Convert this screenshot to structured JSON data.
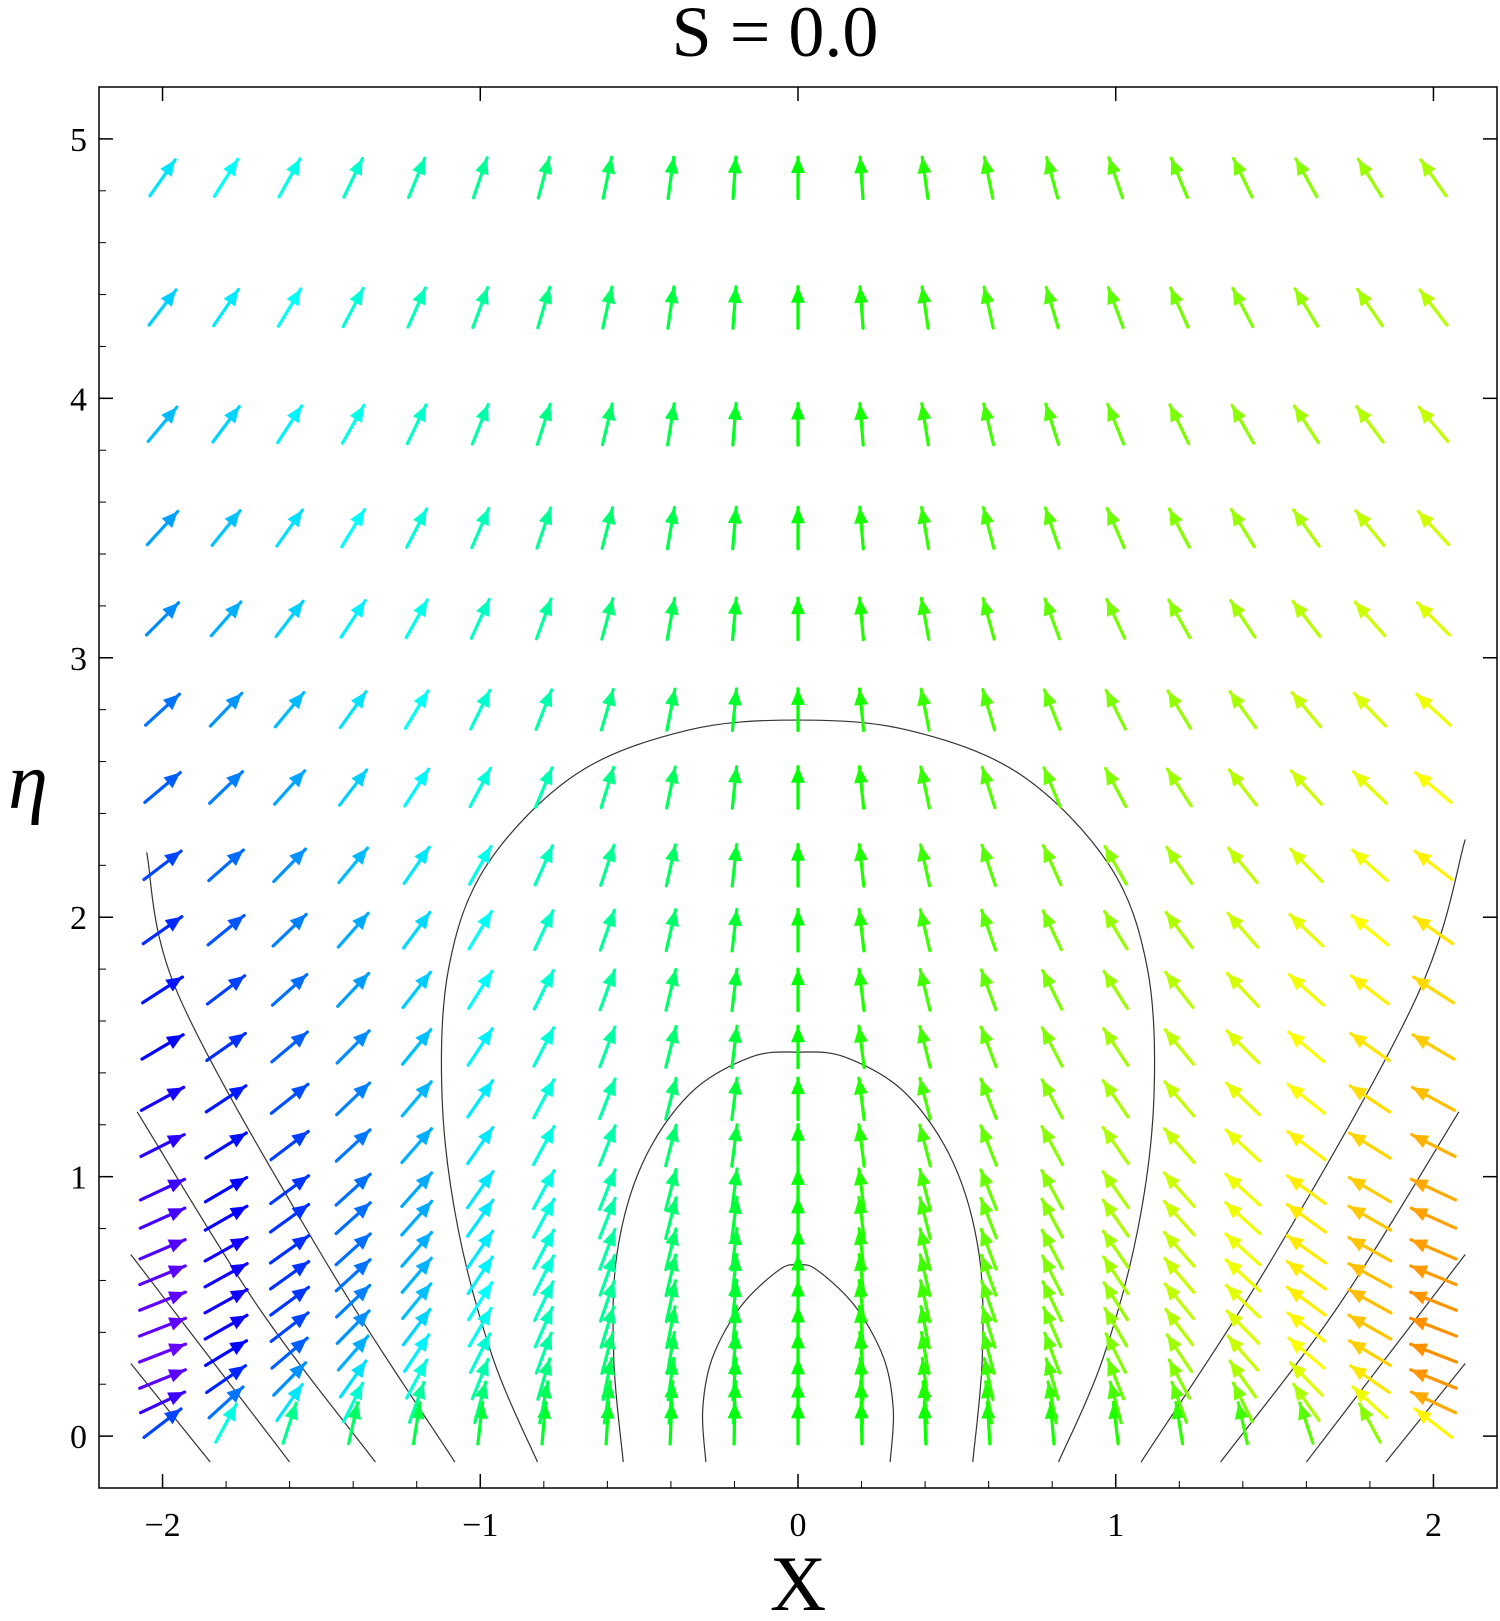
{
  "chart_data": {
    "type": "vector-field",
    "title": "S = 0.0",
    "xlabel": "X",
    "ylabel": "η",
    "xlim": [
      -2.2,
      2.2
    ],
    "ylim": [
      -0.2,
      5.2
    ],
    "xticks": [
      -2,
      -1,
      0,
      1,
      2
    ],
    "xtick_labels": [
      "−2",
      "−1",
      "0",
      "1",
      "2"
    ],
    "yticks": [
      0,
      1,
      2,
      3,
      4,
      5
    ],
    "ytick_labels": [
      "0",
      "1",
      "2",
      "3",
      "4",
      "5"
    ],
    "grid": false,
    "field": {
      "description": "velocity field arrows colored by direction (hue)",
      "x_range": [
        -2,
        2
      ],
      "y_range": [
        0,
        5
      ]
    },
    "contours": [
      {
        "level": 1,
        "points": [
          [
            -0.29,
            -0.1
          ],
          [
            -0.3,
            0.1
          ],
          [
            -0.27,
            0.3
          ],
          [
            -0.18,
            0.5
          ],
          [
            -0.06,
            0.64
          ],
          [
            0,
            0.66
          ],
          [
            0.06,
            0.64
          ],
          [
            0.18,
            0.5
          ],
          [
            0.27,
            0.3
          ],
          [
            0.3,
            0.1
          ],
          [
            0.29,
            -0.1
          ]
        ]
      },
      {
        "level": 2,
        "points": [
          [
            -0.55,
            -0.1
          ],
          [
            -0.58,
            0.3
          ],
          [
            -0.57,
            0.7
          ],
          [
            -0.49,
            1.05
          ],
          [
            -0.34,
            1.32
          ],
          [
            -0.15,
            1.46
          ],
          [
            0,
            1.48
          ],
          [
            0.15,
            1.46
          ],
          [
            0.34,
            1.32
          ],
          [
            0.49,
            1.05
          ],
          [
            0.57,
            0.7
          ],
          [
            0.58,
            0.3
          ],
          [
            0.55,
            -0.1
          ]
        ]
      },
      {
        "level": 3,
        "points": [
          [
            -0.82,
            -0.1
          ],
          [
            -0.96,
            0.3
          ],
          [
            -1.07,
            0.8
          ],
          [
            -1.12,
            1.3
          ],
          [
            -1.1,
            1.8
          ],
          [
            -0.98,
            2.2
          ],
          [
            -0.7,
            2.55
          ],
          [
            -0.35,
            2.72
          ],
          [
            0,
            2.76
          ],
          [
            0.35,
            2.72
          ],
          [
            0.7,
            2.55
          ],
          [
            0.98,
            2.2
          ],
          [
            1.1,
            1.8
          ],
          [
            1.12,
            1.3
          ],
          [
            1.07,
            0.8
          ],
          [
            0.96,
            0.3
          ],
          [
            0.82,
            -0.1
          ]
        ]
      },
      {
        "level": 4,
        "points": [
          [
            -1.08,
            -0.1
          ],
          [
            -1.5,
            0.7
          ],
          [
            -1.95,
            1.7
          ],
          [
            -2.05,
            2.25
          ]
        ]
      },
      {
        "level": 5,
        "points": [
          [
            1.08,
            -0.1
          ],
          [
            1.5,
            0.7
          ],
          [
            1.95,
            1.7
          ],
          [
            2.1,
            2.3
          ]
        ]
      },
      {
        "level": 6,
        "points": [
          [
            -1.33,
            -0.1
          ],
          [
            -1.7,
            0.5
          ],
          [
            -2.08,
            1.25
          ]
        ]
      },
      {
        "level": 7,
        "points": [
          [
            1.33,
            -0.1
          ],
          [
            1.7,
            0.5
          ],
          [
            2.08,
            1.25
          ]
        ]
      },
      {
        "level": 8,
        "points": [
          [
            -1.6,
            -0.1
          ],
          [
            -1.85,
            0.3
          ],
          [
            -2.1,
            0.7
          ]
        ]
      },
      {
        "level": 9,
        "points": [
          [
            1.6,
            -0.1
          ],
          [
            1.85,
            0.3
          ],
          [
            2.1,
            0.7
          ]
        ]
      },
      {
        "level": 10,
        "points": [
          [
            -1.85,
            -0.1
          ],
          [
            -2.1,
            0.28
          ]
        ]
      },
      {
        "level": 11,
        "points": [
          [
            1.85,
            -0.1
          ],
          [
            2.1,
            0.28
          ]
        ]
      }
    ]
  }
}
